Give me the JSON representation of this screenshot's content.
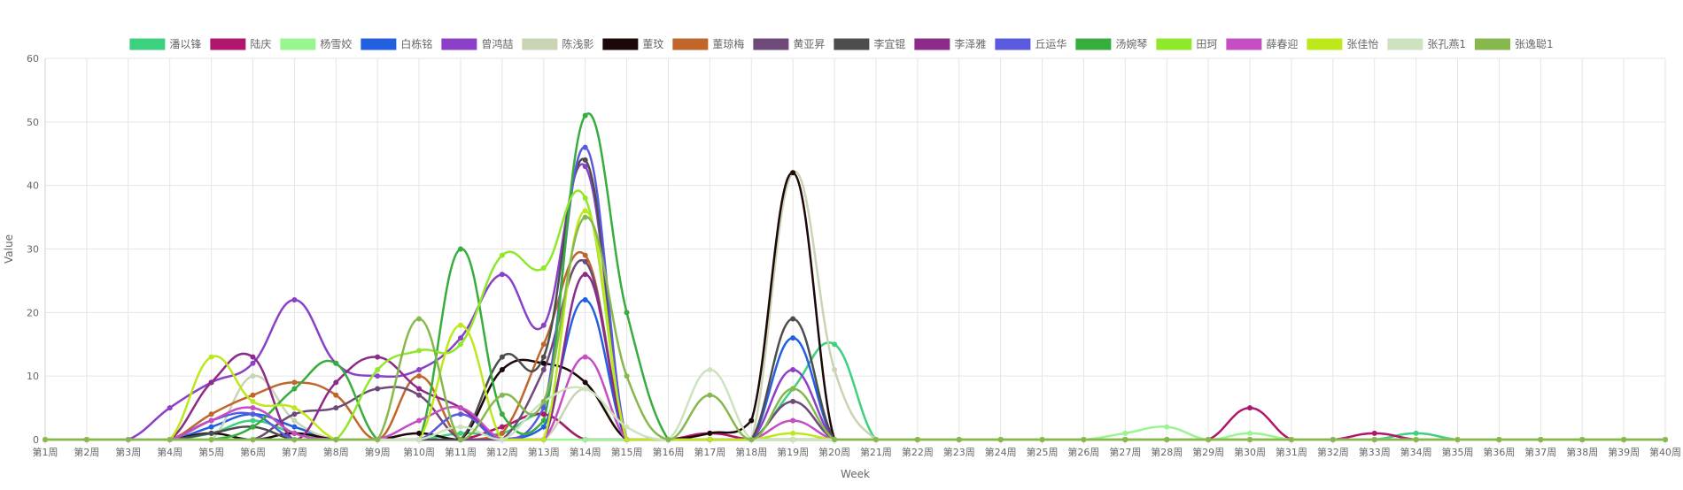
{
  "chart_data": {
    "type": "line",
    "xlabel": "Week",
    "ylabel": "Value",
    "ylim": [
      0,
      60
    ],
    "yticks": [
      0,
      10,
      20,
      30,
      40,
      50,
      60
    ],
    "grid": true,
    "legend_position": "top",
    "categories": [
      "第1周",
      "第2周",
      "第3周",
      "第4周",
      "第5周",
      "第6周",
      "第7周",
      "第8周",
      "第9周",
      "第10周",
      "第11周",
      "第12周",
      "第13周",
      "第14周",
      "第15周",
      "第16周",
      "第17周",
      "第18周",
      "第19周",
      "第20周",
      "第21周",
      "第22周",
      "第23周",
      "第24周",
      "第25周",
      "第26周",
      "第27周",
      "第28周",
      "第29周",
      "第30周",
      "第31周",
      "第32周",
      "第33周",
      "第34周",
      "第35周",
      "第36周",
      "第37周",
      "第38周",
      "第39周",
      "第40周"
    ],
    "series": [
      {
        "name": "潘以锋",
        "color": "#3dd17f",
        "values": [
          0,
          0,
          0,
          0,
          1,
          3,
          1,
          0,
          0,
          0,
          1,
          1,
          4,
          0,
          0,
          0,
          0,
          0,
          8,
          15,
          0,
          0,
          0,
          0,
          0,
          0,
          0,
          0,
          0,
          0,
          0,
          0,
          0,
          1,
          0,
          0,
          0,
          0,
          0,
          0
        ]
      },
      {
        "name": "陆庆",
        "color": "#b0166b",
        "values": [
          0,
          0,
          0,
          0,
          0,
          0,
          0,
          0,
          0,
          0,
          0,
          2,
          4,
          0,
          0,
          0,
          1,
          0,
          0,
          0,
          0,
          0,
          0,
          0,
          0,
          0,
          0,
          0,
          0,
          5,
          0,
          0,
          1,
          0,
          0,
          0,
          0,
          0,
          0,
          0
        ]
      },
      {
        "name": "杨雪姣",
        "color": "#99f58f",
        "values": [
          0,
          0,
          0,
          0,
          0,
          0,
          0,
          0,
          0,
          0,
          0,
          0,
          0,
          0,
          0,
          0,
          0,
          0,
          0,
          0,
          0,
          0,
          0,
          0,
          0,
          0,
          1,
          2,
          0,
          1,
          0,
          0,
          0,
          0,
          0,
          0,
          0,
          0,
          0,
          0
        ]
      },
      {
        "name": "白栋铭",
        "color": "#2360e0",
        "values": [
          0,
          0,
          0,
          0,
          2,
          4,
          2,
          0,
          0,
          0,
          0,
          0,
          2,
          22,
          0,
          0,
          0,
          0,
          16,
          0,
          0,
          0,
          0,
          0,
          0,
          0,
          0,
          0,
          0,
          0,
          0,
          0,
          0,
          0,
          0,
          0,
          0,
          0,
          0,
          0
        ]
      },
      {
        "name": "曾鸿喆",
        "color": "#8b40c8",
        "values": [
          0,
          0,
          0,
          5,
          9,
          12,
          22,
          12,
          10,
          11,
          16,
          26,
          18,
          43,
          0,
          0,
          0,
          0,
          11,
          0,
          0,
          0,
          0,
          0,
          0,
          0,
          0,
          0,
          0,
          0,
          0,
          0,
          0,
          0,
          0,
          0,
          0,
          0,
          0,
          0
        ]
      },
      {
        "name": "陈浅影",
        "color": "#c9d4b5",
        "values": [
          0,
          0,
          0,
          0,
          0,
          10,
          3,
          0,
          0,
          0,
          0,
          0,
          0,
          8,
          0,
          0,
          0,
          0,
          42,
          11,
          0,
          0,
          0,
          0,
          0,
          0,
          0,
          0,
          0,
          0,
          0,
          0,
          0,
          0,
          0,
          0,
          0,
          0,
          0,
          0
        ]
      },
      {
        "name": "董玟",
        "color": "#1c0808",
        "values": [
          0,
          0,
          0,
          0,
          1,
          0,
          1,
          0,
          0,
          1,
          0,
          11,
          12,
          9,
          0,
          0,
          1,
          3,
          42,
          0,
          0,
          0,
          0,
          0,
          0,
          0,
          0,
          0,
          0,
          0,
          0,
          0,
          0,
          0,
          0,
          0,
          0,
          0,
          0,
          0
        ]
      },
      {
        "name": "董琼梅",
        "color": "#c0662a",
        "values": [
          0,
          0,
          0,
          0,
          4,
          7,
          9,
          7,
          0,
          10,
          0,
          1,
          15,
          29,
          0,
          0,
          0,
          0,
          0,
          0,
          0,
          0,
          0,
          0,
          0,
          0,
          0,
          0,
          0,
          0,
          0,
          0,
          0,
          0,
          0,
          0,
          0,
          0,
          0,
          0
        ]
      },
      {
        "name": "黄亚昇",
        "color": "#6e4a78",
        "values": [
          0,
          0,
          0,
          0,
          0,
          0,
          4,
          5,
          8,
          7,
          0,
          0,
          11,
          28,
          0,
          0,
          0,
          0,
          6,
          0,
          0,
          0,
          0,
          0,
          0,
          0,
          0,
          0,
          0,
          0,
          0,
          0,
          0,
          0,
          0,
          0,
          0,
          0,
          0,
          0
        ]
      },
      {
        "name": "李宜锟",
        "color": "#4d4d4d",
        "values": [
          0,
          0,
          0,
          0,
          1,
          2,
          0,
          0,
          0,
          0,
          0,
          13,
          13,
          44,
          0,
          0,
          0,
          0,
          19,
          0,
          0,
          0,
          0,
          0,
          0,
          0,
          0,
          0,
          0,
          0,
          0,
          0,
          0,
          0,
          0,
          0,
          0,
          0,
          0,
          0
        ]
      },
      {
        "name": "李泽雅",
        "color": "#8c2b8a",
        "values": [
          0,
          0,
          0,
          0,
          9,
          13,
          0,
          9,
          13,
          8,
          5,
          0,
          0,
          26,
          0,
          0,
          0,
          0,
          0,
          0,
          0,
          0,
          0,
          0,
          0,
          0,
          0,
          0,
          0,
          0,
          0,
          0,
          0,
          0,
          0,
          0,
          0,
          0,
          0,
          0
        ]
      },
      {
        "name": "丘运华",
        "color": "#5a5adf",
        "values": [
          0,
          0,
          0,
          0,
          3,
          4,
          0,
          0,
          0,
          0,
          4,
          0,
          5,
          46,
          0,
          0,
          0,
          0,
          0,
          0,
          0,
          0,
          0,
          0,
          0,
          0,
          0,
          0,
          0,
          0,
          0,
          0,
          0,
          0,
          0,
          0,
          0,
          0,
          0,
          0
        ]
      },
      {
        "name": "汤婉琴",
        "color": "#36ad3c",
        "values": [
          0,
          0,
          0,
          0,
          0,
          2,
          8,
          12,
          0,
          0,
          30,
          4,
          3,
          51,
          20,
          0,
          0,
          0,
          0,
          0,
          0,
          0,
          0,
          0,
          0,
          0,
          0,
          0,
          0,
          0,
          0,
          0,
          0,
          0,
          0,
          0,
          0,
          0,
          0,
          0
        ]
      },
      {
        "name": "田珂",
        "color": "#8fe82a",
        "values": [
          0,
          0,
          0,
          0,
          0,
          0,
          0,
          0,
          11,
          14,
          15,
          29,
          27,
          38,
          0,
          0,
          0,
          0,
          0,
          0,
          0,
          0,
          0,
          0,
          0,
          0,
          0,
          0,
          0,
          0,
          0,
          0,
          0,
          0,
          0,
          0,
          0,
          0,
          0,
          0
        ]
      },
      {
        "name": "薛春迎",
        "color": "#c34fc3",
        "values": [
          0,
          0,
          0,
          0,
          3,
          5,
          1,
          0,
          0,
          3,
          5,
          0,
          0,
          13,
          0,
          0,
          0,
          0,
          3,
          0,
          0,
          0,
          0,
          0,
          0,
          0,
          0,
          0,
          0,
          0,
          0,
          0,
          0,
          0,
          0,
          0,
          0,
          0,
          0,
          0
        ]
      },
      {
        "name": "张佳怡",
        "color": "#bde81a",
        "values": [
          0,
          0,
          0,
          0,
          13,
          6,
          5,
          0,
          0,
          0,
          18,
          0,
          0,
          36,
          0,
          0,
          0,
          0,
          1,
          0,
          0,
          0,
          0,
          0,
          0,
          0,
          0,
          0,
          0,
          0,
          0,
          0,
          0,
          0,
          0,
          0,
          0,
          0,
          0,
          0
        ]
      },
      {
        "name": "张孔燕1",
        "color": "#cde3bf",
        "values": [
          0,
          0,
          0,
          0,
          0,
          0,
          0,
          0,
          0,
          0,
          2,
          0,
          6,
          8,
          2,
          0,
          11,
          0,
          0,
          0,
          0,
          0,
          0,
          0,
          0,
          0,
          0,
          0,
          0,
          0,
          0,
          0,
          0,
          0,
          0,
          0,
          0,
          0,
          0,
          0
        ]
      },
      {
        "name": "张逸聪1",
        "color": "#86b84e",
        "values": [
          0,
          0,
          0,
          0,
          0,
          0,
          0,
          0,
          0,
          19,
          0,
          7,
          6,
          35,
          10,
          0,
          7,
          0,
          8,
          0,
          0,
          0,
          0,
          0,
          0,
          0,
          0,
          0,
          0,
          0,
          0,
          0,
          0,
          0,
          0,
          0,
          0,
          0,
          0,
          0
        ]
      }
    ]
  }
}
